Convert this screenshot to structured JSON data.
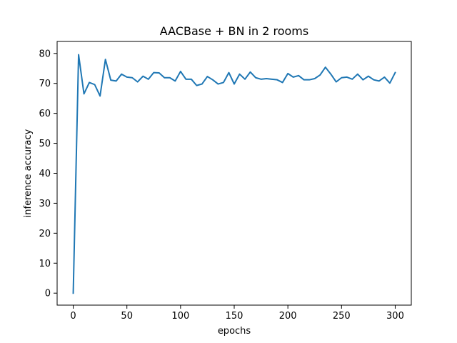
{
  "chart_data": {
    "type": "line",
    "title": "AACBase + BN in 2 rooms",
    "xlabel": "epochs",
    "ylabel": "inference accuracy",
    "xlim": [
      -15,
      315
    ],
    "ylim": [
      -4,
      84
    ],
    "xticks": [
      0,
      50,
      100,
      150,
      200,
      250,
      300
    ],
    "yticks": [
      0,
      10,
      20,
      30,
      40,
      50,
      60,
      70,
      80
    ],
    "grid": false,
    "series": [
      {
        "color": "#1f77b4",
        "x": [
          0,
          5,
          10,
          15,
          20,
          25,
          30,
          35,
          40,
          45,
          50,
          55,
          60,
          65,
          70,
          75,
          80,
          85,
          90,
          95,
          100,
          105,
          110,
          115,
          120,
          125,
          130,
          135,
          140,
          145,
          150,
          155,
          160,
          165,
          170,
          175,
          180,
          185,
          190,
          195,
          200,
          205,
          210,
          215,
          220,
          225,
          230,
          235,
          240,
          245,
          250,
          255,
          260,
          265,
          270,
          275,
          280,
          285,
          290,
          295,
          300
        ],
        "values": [
          0,
          79.6,
          66.5,
          70.3,
          69.6,
          65.8,
          78,
          71.1,
          70.8,
          73.1,
          72.1,
          71.9,
          70.5,
          72.4,
          71.4,
          73.6,
          73.5,
          71.9,
          71.9,
          70.8,
          74.0,
          71.4,
          71.4,
          69.3,
          69.8,
          72.3,
          71.2,
          69.8,
          70.3,
          73.6,
          69.8,
          73.1,
          71.4,
          73.8,
          71.9,
          71.4,
          71.6,
          71.4,
          71.2,
          70.3,
          73.3,
          72.1,
          72.6,
          71.2,
          71.2,
          71.6,
          72.8,
          75.4,
          73.1,
          70.5,
          71.9,
          72.1,
          71.4,
          73.1,
          71.2,
          72.4,
          71.2,
          70.8,
          72.1,
          70.1,
          73.6
        ]
      }
    ]
  }
}
